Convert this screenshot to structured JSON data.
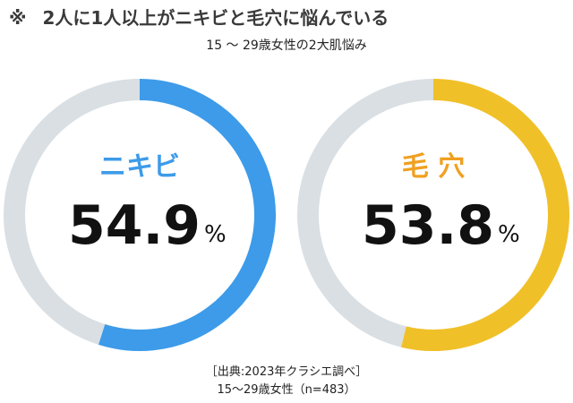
{
  "header": {
    "mark": "※",
    "title": "2人に1人以上がニキビと毛穴に悩んでいる",
    "subtitle": "15 ～ 29歳女性の2大肌悩み"
  },
  "footer": {
    "source": "［出典:2023年クラシエ調べ］",
    "sample": "15～29歳女性（n=483）"
  },
  "chart_data": [
    {
      "type": "pie",
      "title": "ニキビ",
      "value_label": "54.9",
      "unit": "%",
      "values": [
        54.9,
        45.1
      ],
      "colors": [
        "#3d9be9",
        "#d9dfe3"
      ],
      "title_color": "#3d9be9"
    },
    {
      "type": "pie",
      "title": "毛 穴",
      "value_label": "53.8",
      "unit": "%",
      "values": [
        53.8,
        46.2
      ],
      "colors": [
        "#f0c028",
        "#d9dfe3"
      ],
      "title_color": "#f0a020"
    }
  ]
}
